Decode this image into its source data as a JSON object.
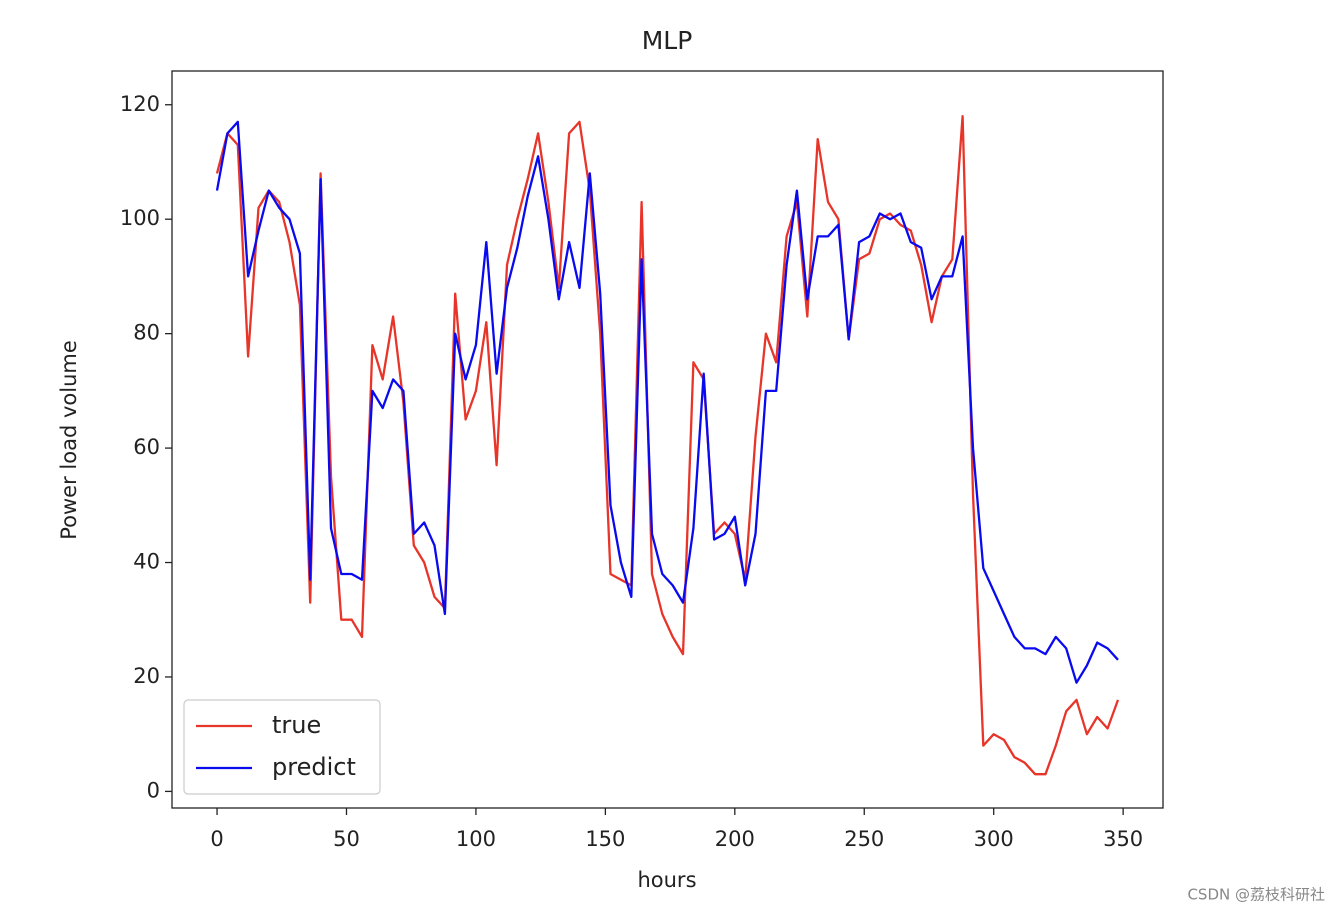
{
  "chart_data": {
    "type": "line",
    "title": "MLP",
    "x_label": "hours",
    "y_label": "Power load volume",
    "x": [
      0,
      4,
      8,
      12,
      16,
      20,
      24,
      28,
      32,
      36,
      40,
      44,
      48,
      52,
      56,
      60,
      64,
      68,
      72,
      76,
      80,
      84,
      88,
      92,
      96,
      100,
      104,
      108,
      112,
      116,
      120,
      124,
      128,
      132,
      136,
      140,
      144,
      148,
      152,
      156,
      160,
      164,
      168,
      172,
      176,
      180,
      184,
      188,
      192,
      196,
      200,
      204,
      208,
      212,
      216,
      220,
      224,
      228,
      232,
      236,
      240,
      244,
      248,
      252,
      256,
      260,
      264,
      268,
      272,
      276,
      280,
      284,
      288,
      292,
      296,
      300,
      304,
      308,
      312,
      316,
      320,
      324,
      328,
      332,
      336,
      340,
      344,
      348
    ],
    "series": [
      {
        "name": "true",
        "color": "#e8352a",
        "values": [
          108,
          115,
          113,
          76,
          102,
          105,
          103,
          96,
          85,
          33,
          108,
          55,
          30,
          30,
          27,
          78,
          72,
          83,
          68,
          43,
          40,
          34,
          32,
          87,
          65,
          70,
          82,
          57,
          92,
          100,
          107,
          115,
          103,
          88,
          115,
          117,
          105,
          80,
          38,
          37,
          36,
          103,
          38,
          31,
          27,
          24,
          75,
          72,
          45,
          47,
          45,
          37,
          62,
          80,
          75,
          97,
          103,
          83,
          114,
          103,
          100,
          79,
          93,
          94,
          100,
          101,
          99,
          98,
          92,
          82,
          90,
          93,
          118,
          52,
          8,
          10,
          9,
          6,
          5,
          3,
          3,
          8,
          14,
          16,
          10,
          13,
          11,
          16
        ]
      },
      {
        "name": "predict",
        "color": "#0a0af0",
        "values": [
          105,
          115,
          117,
          90,
          98,
          105,
          102,
          100,
          94,
          37,
          107,
          46,
          38,
          38,
          37,
          70,
          67,
          72,
          70,
          45,
          47,
          43,
          31,
          80,
          72,
          78,
          96,
          73,
          88,
          95,
          104,
          111,
          100,
          86,
          96,
          88,
          108,
          87,
          50,
          40,
          34,
          93,
          45,
          38,
          36,
          33,
          46,
          73,
          44,
          45,
          48,
          36,
          45,
          70,
          70,
          92,
          105,
          86,
          97,
          97,
          99,
          79,
          96,
          97,
          101,
          100,
          101,
          96,
          95,
          86,
          90,
          90,
          97,
          60,
          39,
          35,
          31,
          27,
          25,
          25,
          24,
          27,
          25,
          19,
          22,
          26,
          25,
          23
        ]
      }
    ],
    "xlim": [
      -17.4,
      365.4
    ],
    "ylim": [
      -2.9,
      125.9
    ],
    "xticks": [
      0,
      50,
      100,
      150,
      200,
      250,
      300,
      350
    ],
    "yticks": [
      0,
      20,
      40,
      60,
      80,
      100,
      120
    ],
    "legend": "lower left",
    "watermark": "CSDN @荔枝科研社"
  }
}
